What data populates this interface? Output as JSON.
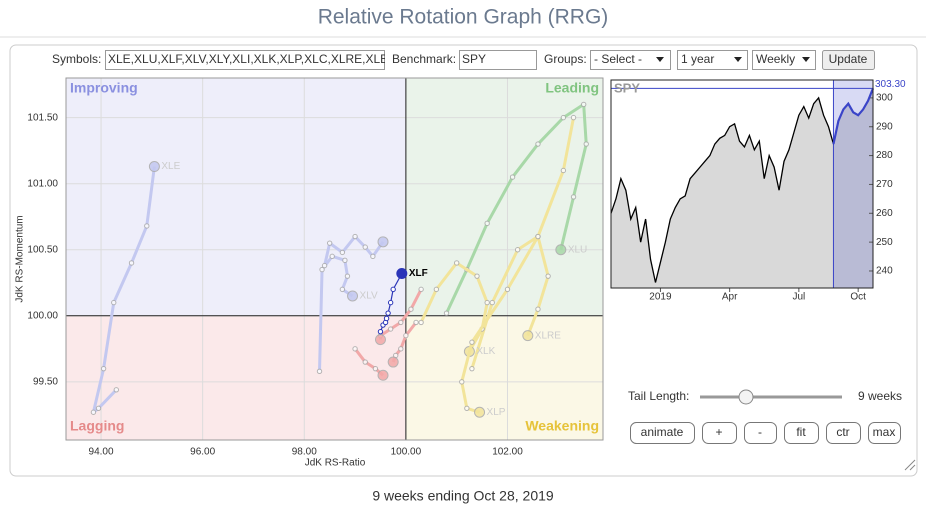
{
  "header": {
    "title": "Relative Rotation Graph (RRG)"
  },
  "controls": {
    "symbols_label": "Symbols:",
    "symbols_value": "XLE,XLU,XLF,XLV,XLY,XLI,XLK,XLP,XLC,XLRE,XLB",
    "benchmark_label": "Benchmark:",
    "benchmark_value": "SPY",
    "groups_label": "Groups:",
    "groups_value": "- Select -",
    "period_value": "1 year",
    "frequency_value": "Weekly",
    "update_button": "Update"
  },
  "chart_data": [
    {
      "type": "rrg",
      "xlabel": "JdK RS-Ratio",
      "ylabel": "JdK RS-Momentum",
      "center": [
        100,
        100
      ],
      "quadrants": [
        {
          "name": "Improving",
          "color": "#8a90e0",
          "fill": "#eeeefa"
        },
        {
          "name": "Leading",
          "color": "#80c480",
          "fill": "#eaf3ea"
        },
        {
          "name": "Lagging",
          "color": "#e58a8a",
          "fill": "#fbe9ea"
        },
        {
          "name": "Weakening",
          "color": "#e6c33a",
          "fill": "#fbf8e6"
        }
      ],
      "xlim": [
        93.31,
        103.88
      ],
      "ylim": [
        99.06,
        101.8
      ],
      "xticks": [
        {
          "value": 94,
          "label": "94.00"
        },
        {
          "value": 96,
          "label": "96.00"
        },
        {
          "value": 98,
          "label": "98.00"
        },
        {
          "value": 100,
          "label": "100.00"
        },
        {
          "value": 102,
          "label": "102.00"
        }
      ],
      "yticks": [
        {
          "value": 99.5,
          "label": "99.50"
        },
        {
          "value": 100,
          "label": "100.00"
        },
        {
          "value": 100.5,
          "label": "100.50"
        },
        {
          "value": 101,
          "label": "101.00"
        },
        {
          "value": 101.5,
          "label": "101.50"
        }
      ],
      "grid": true,
      "series": [
        {
          "name": "XLE",
          "color": "#c3c8f0",
          "x": [
            94.3,
            93.95,
            93.85,
            94.05,
            94.25,
            94.6,
            94.9,
            95.05
          ],
          "y": [
            99.44,
            99.3,
            99.27,
            99.6,
            100.1,
            100.4,
            100.68,
            101.13
          ]
        },
        {
          "name": "XLV",
          "color": "#c3c8f0",
          "x": [
            98.3,
            98.35,
            98.55,
            98.8,
            98.85,
            98.75,
            98.95
          ],
          "y": [
            99.58,
            100.35,
            100.45,
            100.42,
            100.3,
            100.2,
            100.15
          ]
        },
        {
          "color": "#c3c8f0",
          "x": [
            98.4,
            98.5,
            98.75,
            99.0,
            99.2,
            99.35,
            99.55
          ],
          "y": [
            100.38,
            100.55,
            100.48,
            100.6,
            100.52,
            100.45,
            100.56
          ]
        },
        {
          "color": "#f2a8a8",
          "x": [
            100.3,
            100.1,
            99.9,
            99.7,
            99.5,
            99.5
          ],
          "y": [
            100.2,
            100.05,
            99.95,
            99.9,
            99.85,
            99.82
          ]
        },
        {
          "color": "#f2a8a8",
          "x": [
            100.2,
            100.0,
            99.9,
            99.8,
            99.75
          ],
          "y": [
            99.95,
            99.85,
            99.75,
            99.7,
            99.65
          ]
        },
        {
          "color": "#f2a8a8",
          "x": [
            99.0,
            99.2,
            99.4,
            99.55
          ],
          "y": [
            99.75,
            99.65,
            99.6,
            99.55
          ]
        },
        {
          "name": "XLU",
          "color": "#a8d8a8",
          "x": [
            100.8,
            101.2,
            101.6,
            102.1,
            102.6,
            103.1,
            103.5,
            103.55,
            103.3,
            103.05
          ],
          "y": [
            100.02,
            100.35,
            100.7,
            101.05,
            101.3,
            101.5,
            101.6,
            101.3,
            100.9,
            100.5
          ]
        },
        {
          "name": "XLRE",
          "color": "#f2e49a",
          "x": [
            101.3,
            101.7,
            102.2,
            102.6,
            102.8,
            102.6,
            102.4
          ],
          "y": [
            99.6,
            100.1,
            100.5,
            100.6,
            100.3,
            100.05,
            99.85
          ]
        },
        {
          "name": "XLK",
          "color": "#f2e49a",
          "x": [
            100.3,
            100.6,
            101.0,
            101.4,
            101.6,
            101.5,
            101.25
          ],
          "y": [
            99.95,
            100.2,
            100.4,
            100.3,
            100.1,
            99.9,
            99.73
          ]
        },
        {
          "name": "XLP",
          "color": "#f2e49a",
          "x": [
            103.3,
            103.1,
            102.6,
            102.0,
            101.3,
            101.1,
            101.2,
            101.45
          ],
          "y": [
            101.5,
            101.1,
            100.6,
            100.2,
            99.8,
            99.5,
            99.3,
            99.27
          ]
        },
        {
          "name": "XLF",
          "color": "#2b35b8",
          "highlight": true,
          "x": [
            99.5,
            99.55,
            99.6,
            99.62,
            99.65,
            99.7,
            99.75,
            99.92
          ],
          "y": [
            99.88,
            99.93,
            99.95,
            99.98,
            100.02,
            100.1,
            100.2,
            100.32
          ]
        }
      ]
    },
    {
      "type": "line",
      "title": "SPY",
      "color": "#000000",
      "tail_color": "#3a44c8",
      "tail_start": 45,
      "values": [
        260,
        265,
        272,
        268,
        258,
        262,
        250,
        258,
        244,
        236,
        243,
        250,
        258,
        262,
        265,
        266,
        272,
        274,
        276,
        278,
        280,
        284,
        286,
        287,
        290,
        291,
        285,
        283,
        287,
        282,
        285,
        272,
        280,
        276,
        268,
        278,
        282,
        288,
        294,
        297,
        293,
        298,
        300,
        294,
        290,
        284,
        292,
        296,
        298,
        295,
        294,
        296,
        299,
        303.3
      ],
      "value_labels": {
        "53": "303.30"
      },
      "xlim": [
        0,
        53
      ],
      "ylim": [
        234.1,
        306.2
      ],
      "xticks": [
        {
          "value": 10,
          "label": "2019"
        },
        {
          "value": 24,
          "label": "Apr"
        },
        {
          "value": 38,
          "label": "Jul"
        },
        {
          "value": 50,
          "label": "Oct"
        }
      ],
      "yticks": [
        240,
        250,
        260,
        270,
        280,
        290,
        300
      ]
    }
  ],
  "tail_control": {
    "label": "Tail Length:",
    "value": "9 weeks"
  },
  "buttons": [
    "animate",
    "+",
    "-",
    "fit",
    "ctr",
    "max"
  ],
  "footer": "9 weeks ending Oct 28, 2019"
}
